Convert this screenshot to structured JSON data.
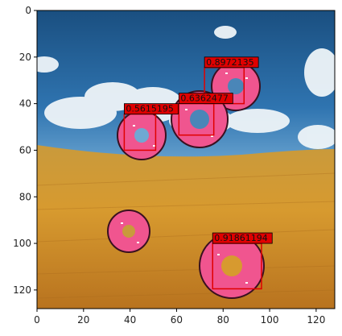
{
  "figure": {
    "x_ticks": [
      "0",
      "20",
      "40",
      "60",
      "80",
      "100",
      "120"
    ],
    "y_ticks": [
      "0",
      "20",
      "40",
      "60",
      "80",
      "100",
      "120"
    ]
  },
  "detections": [
    {
      "label": "0.8972135",
      "x0": 72,
      "y0": 24.5,
      "x1": 89,
      "y1": 40
    },
    {
      "label": "0.6362477",
      "x0": 61,
      "y0": 40,
      "x1": 76,
      "y1": 53.5
    },
    {
      "label": "0.5615195",
      "x0": 37.5,
      "y0": 44.5,
      "x1": 51,
      "y1": 60
    },
    {
      "label": "0.91861194",
      "x0": 75.5,
      "y0": 100,
      "x1": 96.5,
      "y1": 119.5
    }
  ],
  "colors": {
    "box": "#e00000",
    "label_bg": "#e00000",
    "donut": "#f0558f",
    "donut_hole": "#4a86b8"
  }
}
